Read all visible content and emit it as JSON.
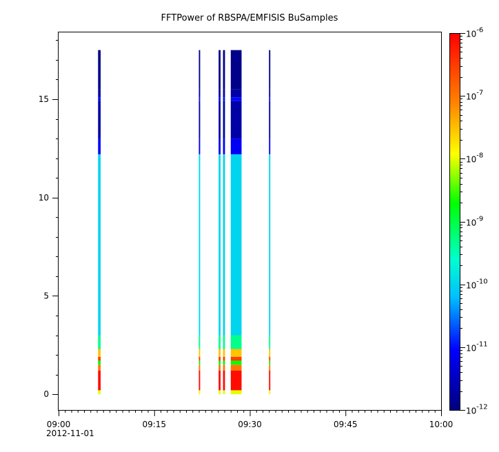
{
  "chart_data": {
    "type": "heatmap",
    "title": "FFTPower of RBSPA/EMFISIS  BuSamples",
    "xlabel": "",
    "ylabel": "",
    "x_range": [
      "09:00",
      "10:00"
    ],
    "x_ticks": [
      "09:00",
      "09:15",
      "09:30",
      "09:45",
      "10:00"
    ],
    "x_date_label": "2012-11-01",
    "ylim": [
      -0.8,
      18.4
    ],
    "y_ticks": [
      0,
      5,
      10,
      15
    ],
    "grid": false,
    "colorbar": {
      "scale": "log",
      "min": 1e-12,
      "max": 1e-06,
      "ticks": [
        {
          "base": "10",
          "exp": "-6",
          "value": 1e-06
        },
        {
          "base": "10",
          "exp": "-7",
          "value": 1e-07
        },
        {
          "base": "10",
          "exp": "-8",
          "value": 1e-08
        },
        {
          "base": "10",
          "exp": "-9",
          "value": 1e-09
        },
        {
          "base": "10",
          "exp": "-10",
          "value": 1e-10
        },
        {
          "base": "10",
          "exp": "-11",
          "value": 1e-11
        },
        {
          "base": "10",
          "exp": "-12",
          "value": 1e-12
        }
      ],
      "colormap": [
        "#00007f",
        "#0000ff",
        "#00bfff",
        "#00ffd0",
        "#00ff00",
        "#ffff00",
        "#ff8000",
        "#ff0000"
      ]
    },
    "bursts": [
      {
        "start_min": 6.2,
        "end_min": 6.6,
        "y_max": 17.5
      },
      {
        "start_min": 22.0,
        "end_min": 22.2,
        "y_max": 17.5
      },
      {
        "start_min": 25.1,
        "end_min": 25.4,
        "y_max": 17.5
      },
      {
        "start_min": 25.8,
        "end_min": 26.1,
        "y_max": 17.5
      },
      {
        "start_min": 27.0,
        "end_min": 28.7,
        "y_max": 17.5
      },
      {
        "start_min": 33.0,
        "end_min": 33.2,
        "y_max": 17.5
      }
    ],
    "spectrum_bands": [
      {
        "y_from": 15.5,
        "y_to": 17.5,
        "power": 1.2e-12
      },
      {
        "y_from": 15.1,
        "y_to": 15.5,
        "power": 2e-12
      },
      {
        "y_from": 14.9,
        "y_to": 15.1,
        "power": 1e-11
      },
      {
        "y_from": 13.0,
        "y_to": 14.9,
        "power": 2e-12
      },
      {
        "y_from": 12.2,
        "y_to": 13.0,
        "power": 8e-12
      },
      {
        "y_from": 3.0,
        "y_to": 12.2,
        "power": 1e-10
      },
      {
        "y_from": 2.3,
        "y_to": 3.0,
        "power": 5e-10
      },
      {
        "y_from": 1.9,
        "y_to": 2.3,
        "power": 3e-08
      },
      {
        "y_from": 1.7,
        "y_to": 1.9,
        "power": 3e-07
      },
      {
        "y_from": 1.5,
        "y_to": 1.7,
        "power": 2e-09
      },
      {
        "y_from": 1.2,
        "y_to": 1.5,
        "power": 1e-07
      },
      {
        "y_from": 0.2,
        "y_to": 1.2,
        "power": 8e-07
      },
      {
        "y_from": 0.0,
        "y_to": 0.2,
        "power": 1e-08
      }
    ]
  }
}
